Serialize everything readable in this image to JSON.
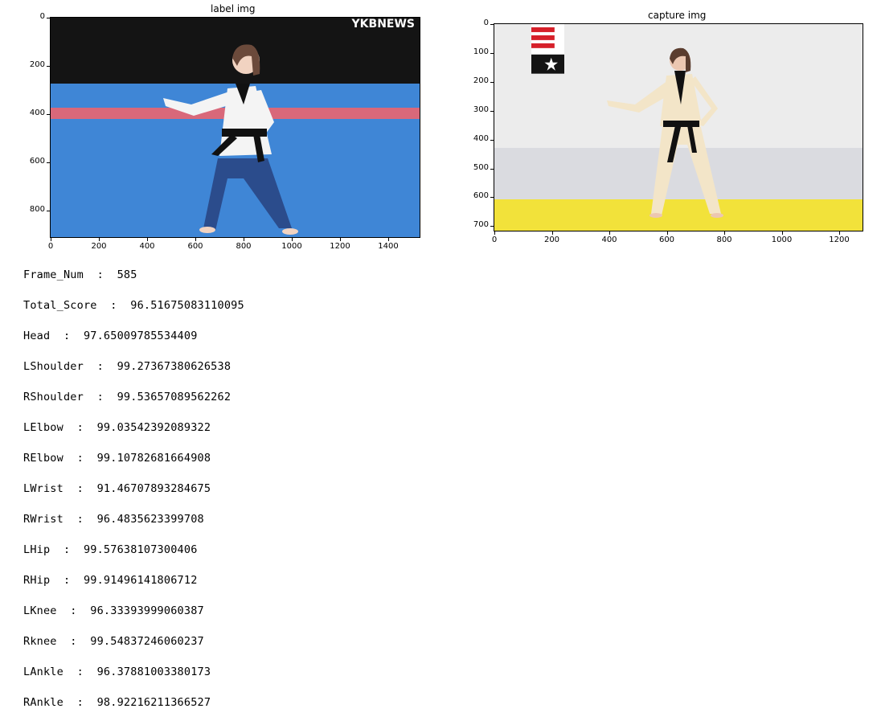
{
  "label_plot": {
    "title": "label img",
    "y_ticks": [
      "0",
      "200",
      "400",
      "600",
      "800"
    ],
    "x_ticks": [
      "0",
      "200",
      "400",
      "600",
      "800",
      "1000",
      "1200",
      "1400"
    ],
    "watermark": "YKBNEWS"
  },
  "capture_plot": {
    "title": "capture img",
    "y_ticks": [
      "0",
      "100",
      "200",
      "300",
      "400",
      "500",
      "600",
      "700"
    ],
    "x_ticks": [
      "0",
      "200",
      "400",
      "600",
      "800",
      "1000",
      "1200"
    ]
  },
  "scores": [
    {
      "label": "Frame_Num",
      "value": "585"
    },
    {
      "label": "Total_Score",
      "value": "96.51675083110095"
    },
    {
      "label": "Head",
      "value": "97.65009785534409"
    },
    {
      "label": "LShoulder",
      "value": "99.27367380626538"
    },
    {
      "label": "RShoulder",
      "value": "99.53657089562262"
    },
    {
      "label": "LElbow",
      "value": "99.03542392089322"
    },
    {
      "label": "RElbow",
      "value": "99.10782681664908"
    },
    {
      "label": "LWrist",
      "value": "91.46707893284675"
    },
    {
      "label": "RWrist",
      "value": "96.4835623399708"
    },
    {
      "label": "LHip",
      "value": "99.57638107300406"
    },
    {
      "label": "RHip",
      "value": "99.91496141806712"
    },
    {
      "label": "LKnee",
      "value": "96.33393999060387"
    },
    {
      "label": "Rknee",
      "value": "99.54837246060237"
    },
    {
      "label": "LAnkle",
      "value": "96.37881003380173"
    },
    {
      "label": "RAnkle",
      "value": "98.92216211366527"
    }
  ],
  "separator": ":"
}
